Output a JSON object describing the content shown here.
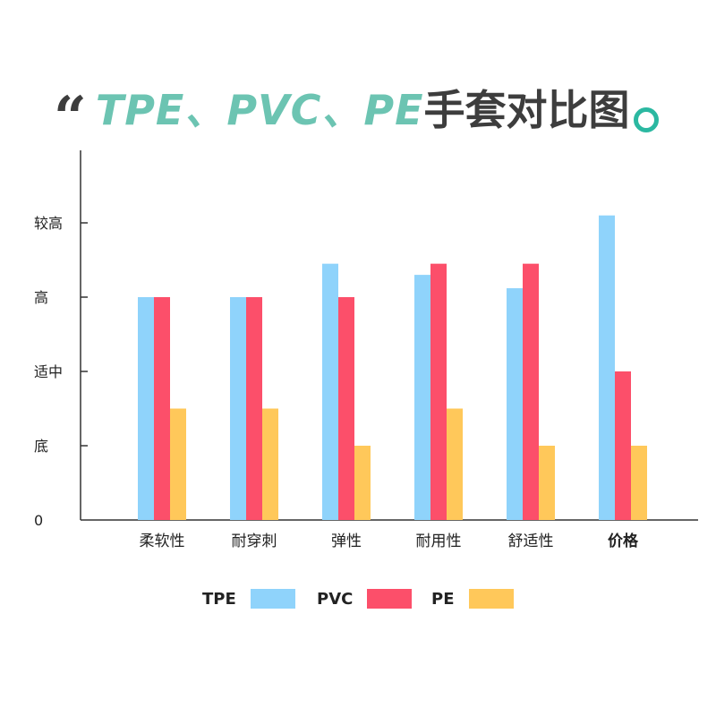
{
  "title": {
    "quote_mark": "“",
    "accent_text": "TPE、PVC、PE",
    "dark_text": "手套对比图",
    "accent_color": "#6cc4b2",
    "dark_color": "#3d3d3d",
    "dot_color": "#2bb8a1"
  },
  "chart_data": {
    "type": "bar",
    "categories": [
      "柔软性",
      "耐穿刺",
      "弹性",
      "耐用性",
      "舒适性",
      "价格"
    ],
    "bold_categories": [
      "价格"
    ],
    "y_tick_labels": [
      "0",
      "底",
      "适中",
      "高",
      "较高"
    ],
    "y_tick_values": [
      0,
      1,
      2,
      3,
      4
    ],
    "ylim": [
      0,
      5
    ],
    "grid": false,
    "legend_position": "bottom",
    "series": [
      {
        "name": "TPE",
        "color": "#8fd3fb",
        "values": [
          3.0,
          3.0,
          3.45,
          3.3,
          3.12,
          4.1
        ]
      },
      {
        "name": "PVC",
        "color": "#fc4f6a",
        "values": [
          3.0,
          3.0,
          3.0,
          3.45,
          3.45,
          2.0
        ]
      },
      {
        "name": "PE",
        "color": "#ffc85a",
        "values": [
          1.5,
          1.5,
          1.0,
          1.5,
          1.0,
          1.0
        ]
      }
    ]
  }
}
